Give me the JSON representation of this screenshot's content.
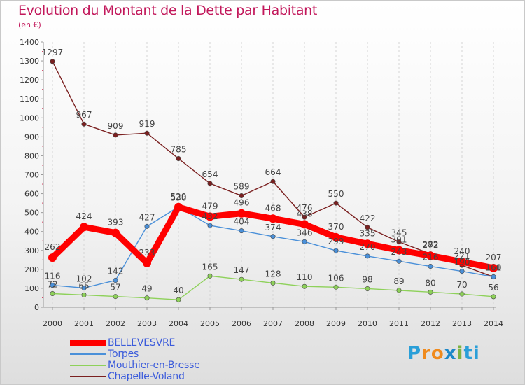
{
  "title": "Evolution du Montant de la Dette par Habitant",
  "unit_label": "(en €)",
  "logo": {
    "letters": [
      "P",
      "r",
      "o",
      "x",
      "i",
      "t",
      "i"
    ],
    "colors": [
      "#2a9fd8",
      "#f08a1c",
      "#f08a1c",
      "#1e88c8",
      "#7cb342",
      "#2a9fd8",
      "#2a9fd8"
    ]
  },
  "chart_data": {
    "type": "line",
    "categories": [
      "2000",
      "2001",
      "2002",
      "2003",
      "2004",
      "2005",
      "2006",
      "2007",
      "2008",
      "2009",
      "2010",
      "2011",
      "2012",
      "2013",
      "2014"
    ],
    "ylim": [
      0,
      1400
    ],
    "yticks": [
      "0",
      "100",
      "200",
      "300",
      "400",
      "500",
      "600",
      "700",
      "800",
      "900",
      "1000",
      "1100",
      "1200",
      "1300",
      "1400"
    ],
    "grid": "vertical-dashed",
    "legend_placement": "bottom-left",
    "series": [
      {
        "name": "BELLEVESVRE",
        "color": "#ff0000",
        "values": [
          262,
          424,
          393,
          233,
          529,
          479,
          496,
          468,
          438,
          370,
          335,
          301,
          272,
          240,
          207
        ],
        "labels": [
          "262",
          "424",
          "393",
          "233",
          "529",
          "479",
          "496",
          "468",
          "438",
          "370",
          "335",
          "301",
          "272",
          "240",
          "207"
        ]
      },
      {
        "name": "Torpes",
        "color": "#4a90d9",
        "values": [
          116,
          102,
          142,
          427,
          530,
          432,
          404,
          374,
          346,
          299,
          270,
          243,
          216,
          190,
          161
        ],
        "labels": [
          "116",
          "102",
          "142",
          "427",
          "530",
          "432",
          "404",
          "374",
          "346",
          "299",
          "270",
          "243",
          "216",
          "190",
          "161"
        ]
      },
      {
        "name": "Mouthier-en-Bresse",
        "color": "#8ed15a",
        "values": [
          72,
          65,
          57,
          49,
          40,
          165,
          147,
          128,
          110,
          106,
          98,
          89,
          80,
          70,
          56
        ],
        "labels": [
          "72",
          "65",
          "57",
          "49",
          "40",
          "165",
          "147",
          "128",
          "110",
          "106",
          "98",
          "89",
          "80",
          "70",
          "56"
        ]
      },
      {
        "name": "Chapelle-Voland",
        "color": "#7b2020",
        "values": [
          1297,
          967,
          909,
          919,
          785,
          654,
          589,
          664,
          476,
          550,
          422,
          345,
          282,
          221,
          160
        ],
        "labels": [
          "1297",
          "967",
          "909",
          "919",
          "785",
          "654",
          "589",
          "664",
          "476",
          "550",
          "422",
          "345",
          "282",
          "221",
          "160"
        ]
      }
    ]
  }
}
